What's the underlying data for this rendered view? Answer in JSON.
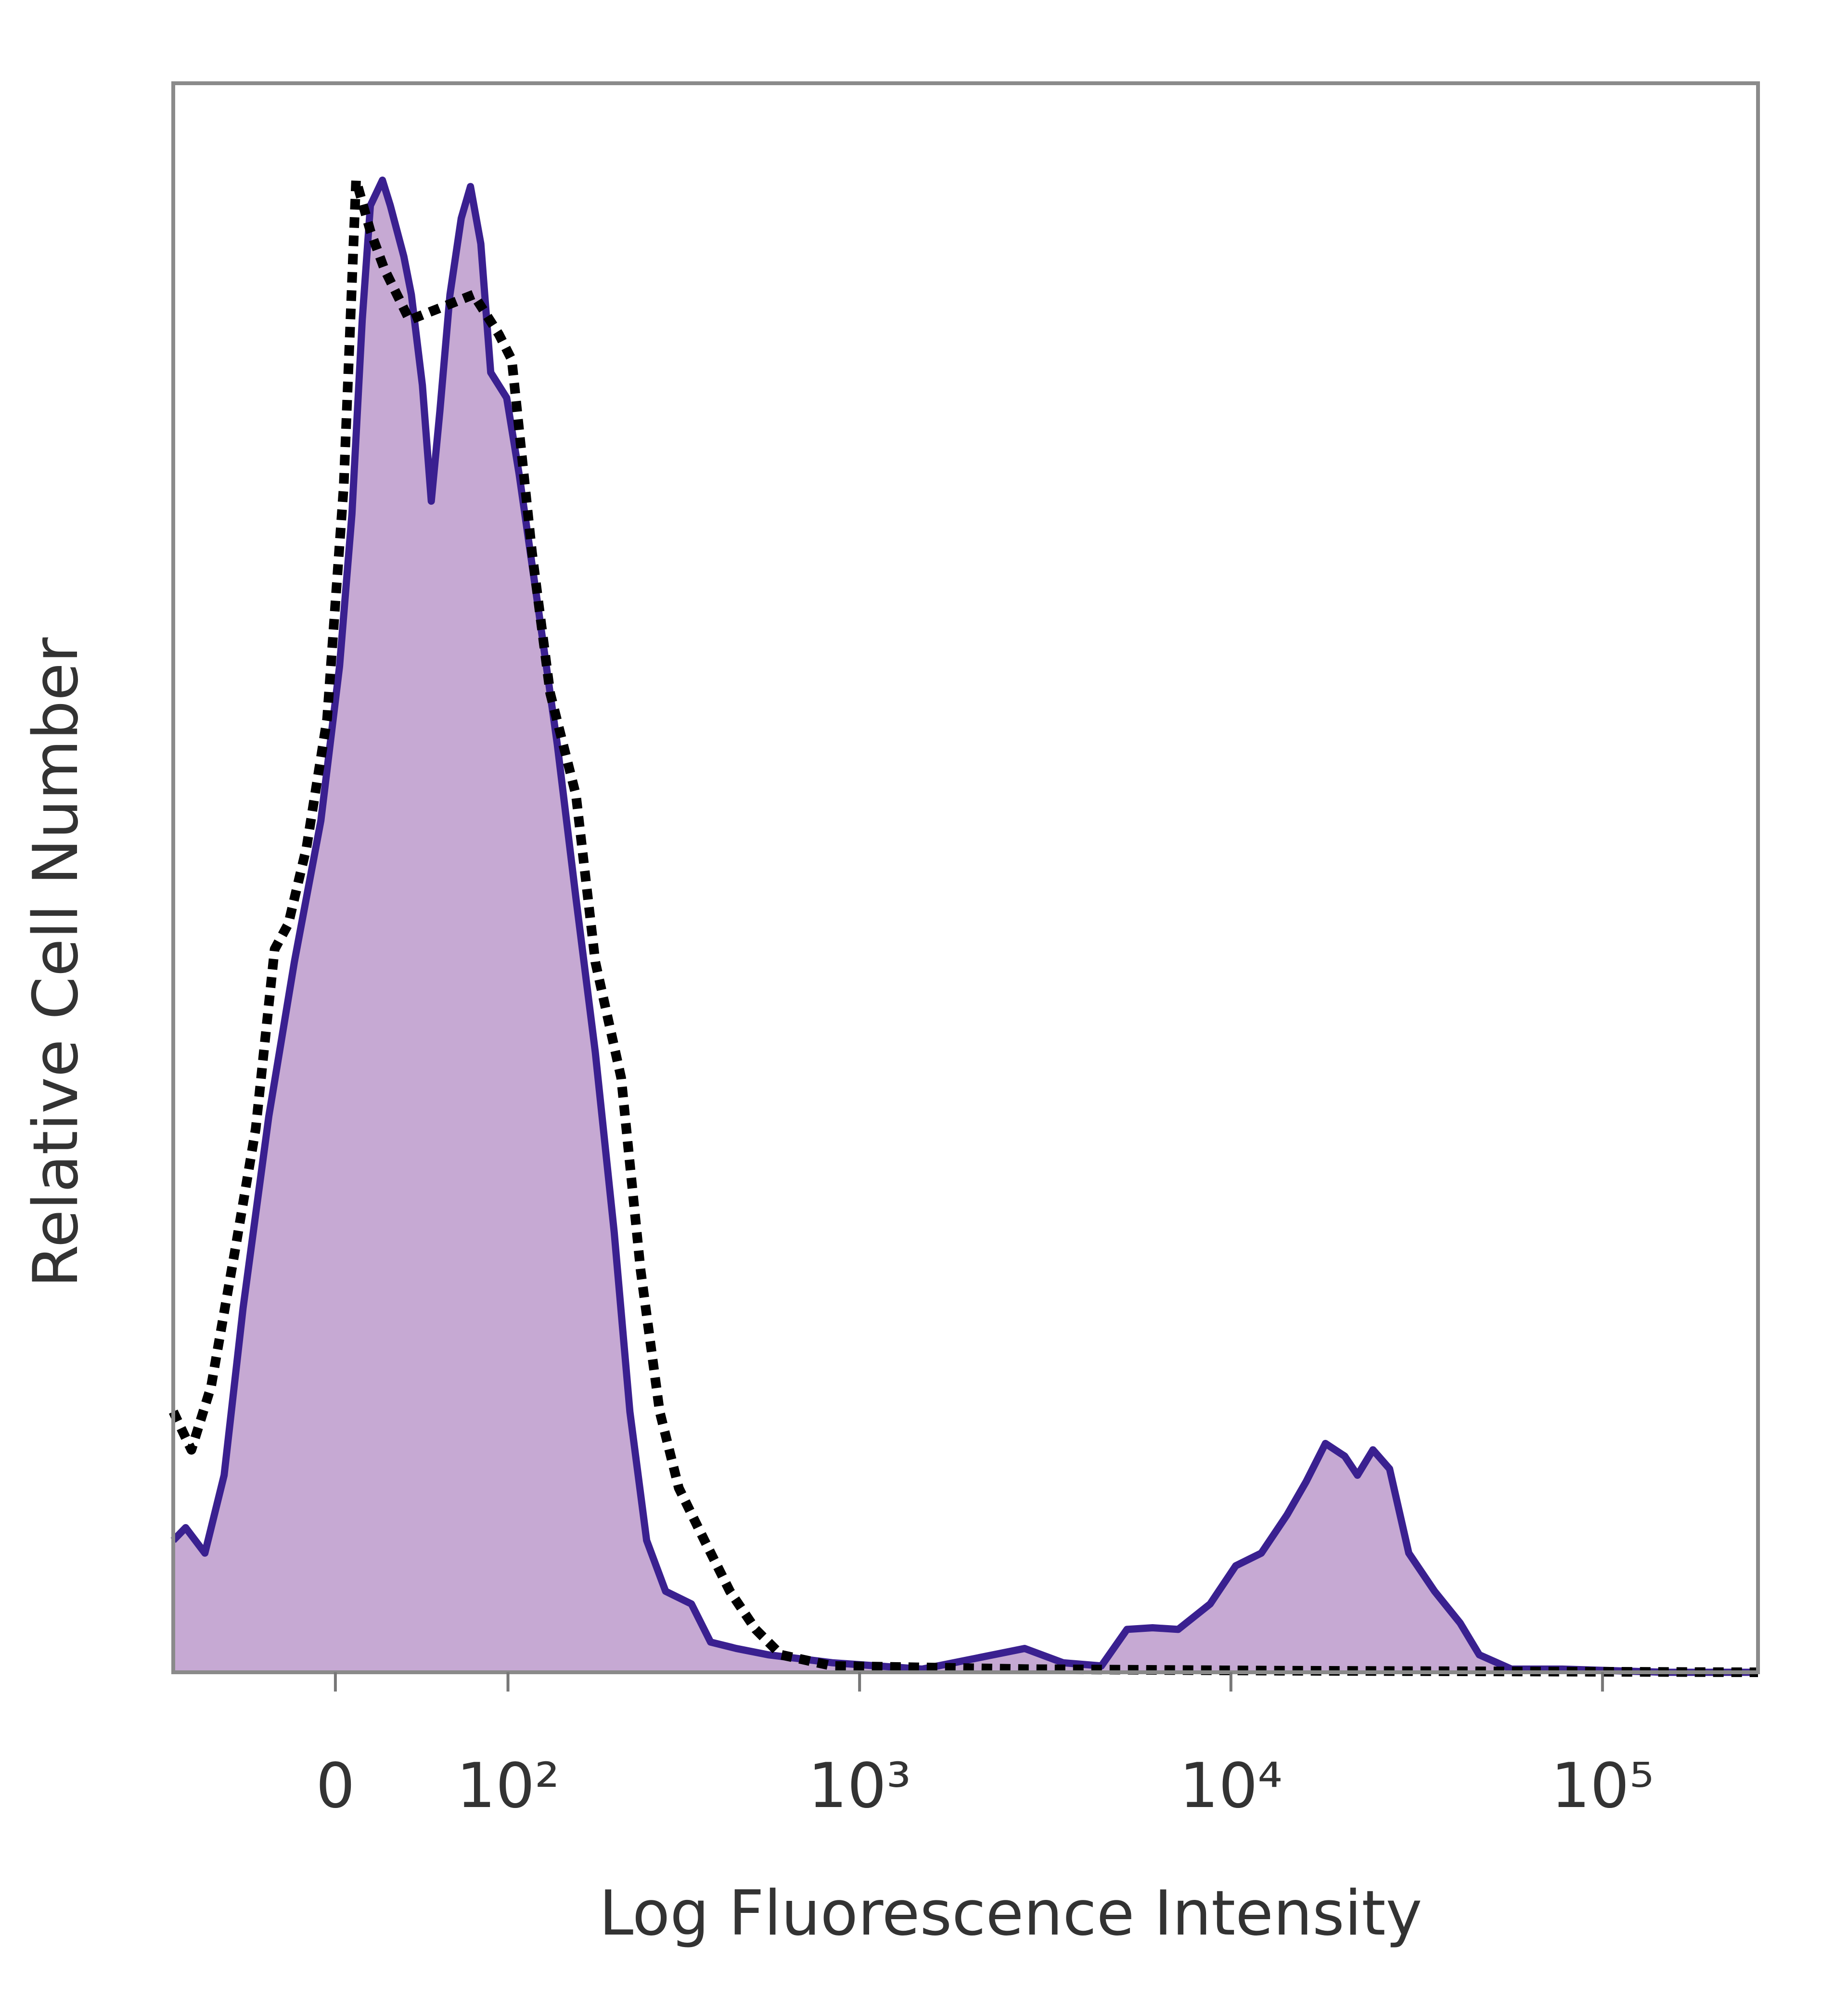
{
  "chart_data": {
    "type": "histogram-overlay",
    "xlabel": "Log Fluorescence Intensity",
    "ylabel": "Relative Cell Number",
    "xscale": "biexponential",
    "xlim": [
      -92,
      262144
    ],
    "ylim": [
      0,
      100
    ],
    "xticks": [
      0,
      {
        "value": 100,
        "label": "10²"
      },
      {
        "value": 1000,
        "label": "10³"
      },
      {
        "value": 10000,
        "label": "10⁴"
      },
      {
        "value": 100000,
        "label": "10⁵"
      }
    ],
    "series": [
      {
        "color": "#3a2090",
        "fill": "#c6a9d3",
        "dashed": false,
        "x": [
          -92,
          -83,
          -70,
          -58,
          -47,
          -33,
          -20,
          -7,
          2,
          8,
          13,
          17,
          23,
          27,
          34,
          38,
          44,
          49,
          54,
          60,
          67,
          73,
          80,
          87,
          99,
          109,
          125,
          144,
          164,
          187,
          212,
          235,
          262,
          296,
          349,
          394,
          463,
          566,
          844,
          1475,
          2785,
          3532,
          4481,
          5252,
          6154,
          7212,
          8792,
          10301,
          12075,
          14152,
          15941,
          17964,
          20244,
          21908,
          24110,
          26732,
          30109,
          35321,
          41390,
          46602,
          56872,
          78033,
          147353,
          262144
        ],
        "values": [
          8.3,
          9.1,
          7.5,
          12.4,
          22.9,
          35,
          44.7,
          53.6,
          63.3,
          72.9,
          85.1,
          92.3,
          93.9,
          92.3,
          89.1,
          86.7,
          81,
          73.7,
          79.4,
          86.7,
          91.5,
          93.5,
          89.9,
          81.8,
          80.2,
          75.4,
          67.3,
          58.4,
          48.7,
          39,
          27.7,
          16.4,
          8.3,
          5.1,
          4.3,
          1.9,
          1.5,
          1.1,
          0.6,
          0.2,
          1.5,
          0.6,
          0.4,
          2.7,
          2.8,
          2.7,
          4.3,
          6.7,
          7.5,
          9.9,
          12,
          14.4,
          13.6,
          12.4,
          14,
          12.8,
          7.5,
          5.1,
          3.1,
          1.1,
          0.2,
          0.2,
          0,
          0
        ]
      },
      {
        "color": "#000000",
        "fill": "none",
        "dashed": true,
        "x": [
          -92,
          -79,
          -66,
          -51,
          -40,
          -30,
          -23,
          -14,
          -4,
          4,
          10,
          17,
          24,
          37,
          55,
          75,
          93,
          103,
          120,
          137,
          164,
          187,
          222,
          252,
          285,
          322,
          379,
          445,
          523,
          613,
          844,
          2785,
          13607,
          262144
        ],
        "values": [
          16.4,
          14,
          18,
          26.9,
          34.2,
          45.5,
          47.1,
          51.9,
          60,
          74.6,
          93.9,
          90.7,
          88.3,
          85.1,
          85.9,
          86.7,
          84.2,
          82.6,
          70.5,
          61.6,
          55.2,
          44.7,
          37.4,
          25.3,
          16.4,
          11.6,
          8.3,
          5.1,
          2.7,
          1.1,
          0.4,
          0.2,
          0.1,
          0
        ]
      }
    ]
  }
}
